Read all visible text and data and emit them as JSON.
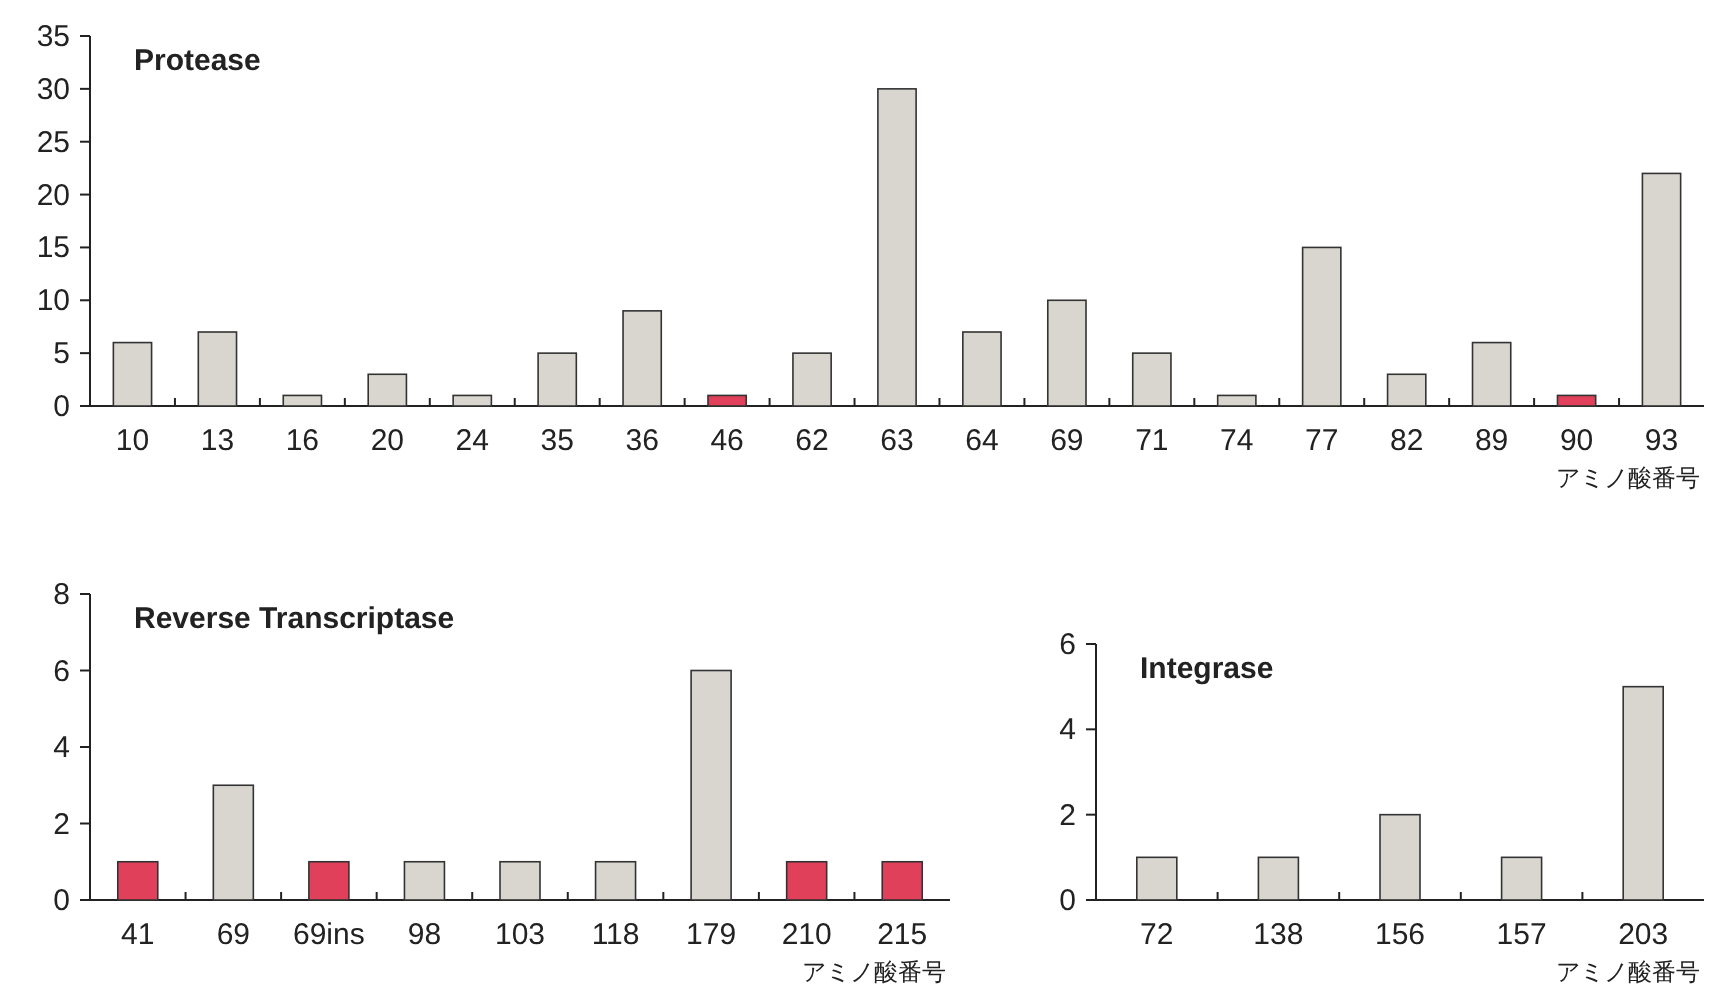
{
  "chart_data": [
    {
      "type": "bar",
      "title": "Protease",
      "xlabel": "アミノ酸番号",
      "categories": [
        "10",
        "13",
        "16",
        "20",
        "24",
        "35",
        "36",
        "46",
        "62",
        "63",
        "64",
        "69",
        "71",
        "74",
        "77",
        "82",
        "89",
        "90",
        "93"
      ],
      "values": [
        6,
        7,
        1,
        3,
        1,
        5,
        9,
        1,
        5,
        30,
        7,
        10,
        5,
        1,
        15,
        3,
        6,
        1,
        22
      ],
      "colors": [
        "#d9d6d0",
        "#d9d6d0",
        "#d9d6d0",
        "#d9d6d0",
        "#d9d6d0",
        "#d9d6d0",
        "#d9d6d0",
        "#e0405a",
        "#d9d6d0",
        "#d9d6d0",
        "#d9d6d0",
        "#d9d6d0",
        "#d9d6d0",
        "#d9d6d0",
        "#d9d6d0",
        "#d9d6d0",
        "#d9d6d0",
        "#e0405a",
        "#d9d6d0"
      ],
      "ylim": [
        0,
        35
      ],
      "yticks": [
        0,
        5,
        10,
        15,
        20,
        25,
        30,
        35
      ]
    },
    {
      "type": "bar",
      "title": "Reverse Transcriptase",
      "xlabel": "アミノ酸番号",
      "categories": [
        "41",
        "69",
        "69ins",
        "98",
        "103",
        "118",
        "179",
        "210",
        "215"
      ],
      "values": [
        1,
        3,
        1,
        1,
        1,
        1,
        6,
        1,
        1
      ],
      "colors": [
        "#e0405a",
        "#d9d6d0",
        "#e0405a",
        "#d9d6d0",
        "#d9d6d0",
        "#d9d6d0",
        "#d9d6d0",
        "#e0405a",
        "#e0405a"
      ],
      "ylim": [
        0,
        8
      ],
      "yticks": [
        0,
        2,
        4,
        6,
        8
      ]
    },
    {
      "type": "bar",
      "title": "Integrase",
      "xlabel": "アミノ酸番号",
      "categories": [
        "72",
        "138",
        "156",
        "157",
        "203"
      ],
      "values": [
        1,
        1,
        2,
        1,
        5
      ],
      "colors": [
        "#d9d6d0",
        "#d9d6d0",
        "#d9d6d0",
        "#d9d6d0",
        "#d9d6d0"
      ],
      "ylim": [
        0,
        6
      ],
      "yticks": [
        0,
        2,
        4,
        6
      ]
    }
  ]
}
